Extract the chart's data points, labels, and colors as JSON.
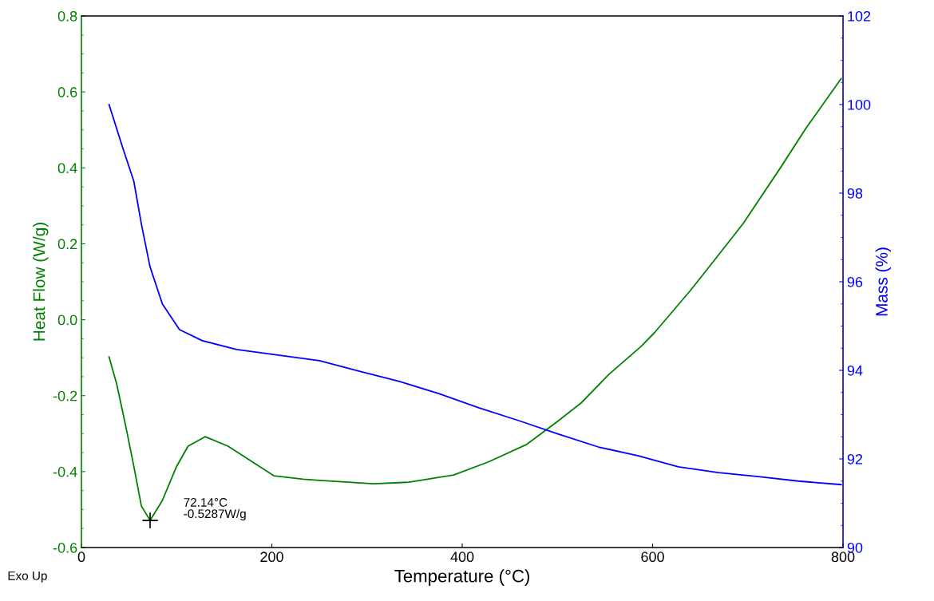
{
  "chart_data": {
    "type": "line",
    "xlabel": "Temperature (°C)",
    "ylabel": "Heat Flow (W/g)",
    "y2label": "Mass (%)",
    "xlim": [
      0,
      800
    ],
    "xticks": [
      0,
      200,
      400,
      600,
      800
    ],
    "ylim": [
      -0.6,
      0.8
    ],
    "yticks": [
      {
        "value": -0.6,
        "label": "-0.6"
      },
      {
        "value": -0.4,
        "label": "-0.4"
      },
      {
        "value": -0.2,
        "label": "-0.2"
      },
      {
        "value": 0,
        "label": "0.0"
      },
      {
        "value": 0.2,
        "label": "0.2"
      },
      {
        "value": 0.4,
        "label": "0.4"
      },
      {
        "value": 0.6,
        "label": "0.6"
      },
      {
        "value": 0.8,
        "label": "0.8"
      }
    ],
    "y2lim": [
      90,
      102
    ],
    "y2ticks": [
      90,
      92,
      94,
      96,
      98,
      100,
      102
    ],
    "grid": false,
    "legend": false,
    "marker": "none",
    "line_style": "solid",
    "series": [
      {
        "color": "#008000",
        "x": [
          29,
          37,
          46,
          55,
          63,
          72.14,
          85,
          100,
          112,
          130,
          154,
          202,
          233,
          250,
          307,
          344,
          391,
          428,
          468,
          499,
          525,
          554,
          588,
          602,
          640,
          669,
          695,
          735,
          761,
          798
        ],
        "values": [
          -0.098,
          -0.169,
          -0.274,
          -0.386,
          -0.491,
          -0.5287,
          -0.476,
          -0.386,
          -0.333,
          -0.308,
          -0.333,
          -0.411,
          -0.42,
          -0.423,
          -0.432,
          -0.428,
          -0.409,
          -0.374,
          -0.328,
          -0.27,
          -0.219,
          -0.144,
          -0.07,
          -0.034,
          0.078,
          0.17,
          0.253,
          0.403,
          0.504,
          0.635
        ]
      },
      {
        "color": "#0000ff",
        "axis": "y2",
        "x": [
          29,
          43,
          55,
          63,
          72,
          85,
          103,
          127,
          163,
          208,
          250,
          292,
          334,
          376,
          418,
          460,
          501,
          543,
          585,
          627,
          669,
          711,
          753,
          798
        ],
        "values": [
          100.0,
          99.05,
          98.27,
          97.3,
          96.34,
          95.5,
          94.92,
          94.67,
          94.47,
          94.34,
          94.22,
          93.98,
          93.75,
          93.47,
          93.15,
          92.86,
          92.56,
          92.27,
          92.07,
          91.82,
          91.69,
          91.6,
          91.5,
          91.42
        ]
      }
    ],
    "annotations": [
      {
        "text": "72.14°C\n-0.5287W/g",
        "x": 72.14,
        "y": -0.5287
      },
      "Exo Up"
    ]
  }
}
